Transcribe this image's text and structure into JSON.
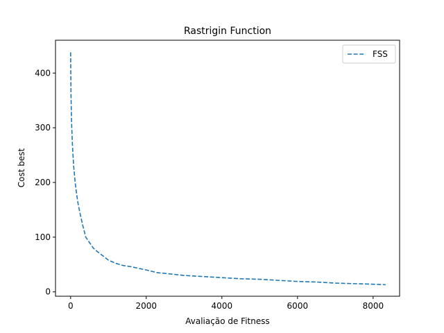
{
  "chart_data": {
    "type": "line",
    "title": "Rastrigin Function",
    "xlabel": "Avaliação de Fitness",
    "ylabel": "Cost best",
    "xlim": [
      -400,
      8700
    ],
    "ylim": [
      -8,
      460
    ],
    "xticks": [
      0,
      2000,
      4000,
      6000,
      8000
    ],
    "yticks": [
      0,
      100,
      200,
      300,
      400
    ],
    "grid": false,
    "legend_position": "top-right",
    "series": [
      {
        "name": "FSS",
        "color": "#1f77b4",
        "style": "dashed",
        "x": [
          0,
          10,
          25,
          50,
          80,
          120,
          160,
          200,
          260,
          320,
          400,
          480,
          600,
          700,
          850,
          1000,
          1200,
          1400,
          1600,
          1800,
          2000,
          2300,
          2600,
          3000,
          3500,
          4000,
          4500,
          5000,
          5500,
          6000,
          6500,
          7000,
          7500,
          8000,
          8330
        ],
        "y": [
          438,
          360,
          310,
          265,
          230,
          200,
          178,
          160,
          140,
          122,
          100,
          92,
          80,
          74,
          66,
          58,
          52,
          48,
          46,
          43,
          40,
          35,
          33,
          30,
          28,
          26,
          24,
          23,
          21,
          19,
          18,
          16,
          15,
          14,
          13
        ]
      }
    ]
  }
}
